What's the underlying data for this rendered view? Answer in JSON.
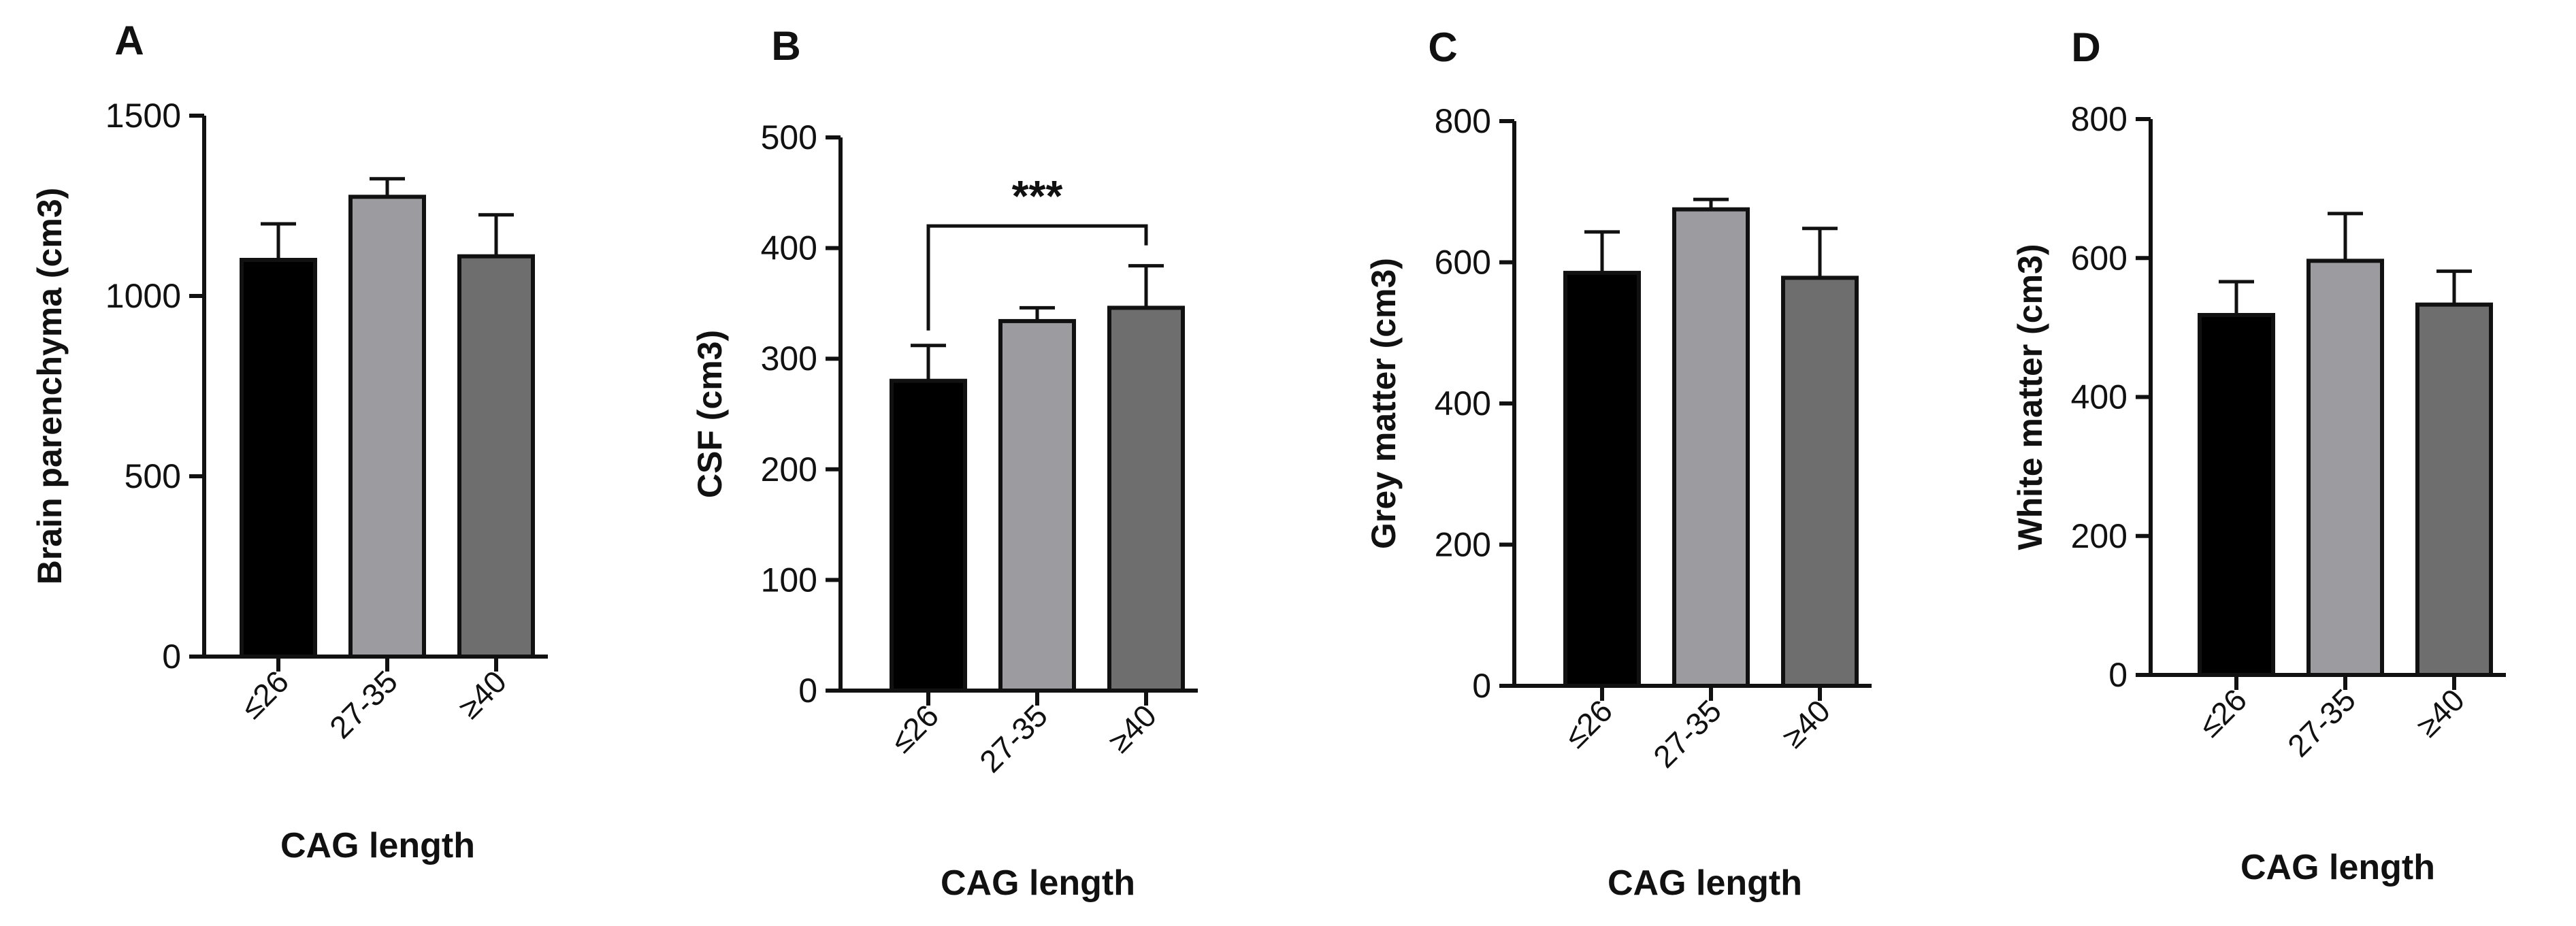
{
  "chart_data": [
    {
      "type": "bar",
      "panel": "A",
      "categories": [
        "≤26",
        "27-35",
        "≥40"
      ],
      "values": [
        1100,
        1275,
        1110
      ],
      "errors": [
        100,
        50,
        115
      ],
      "colors": [
        "#000000",
        "#9c9ca0",
        "#6e6e6e"
      ],
      "ylabel": "Brain parenchyma (cm3)",
      "xlabel": "CAG length",
      "ylim": [
        0,
        1500
      ],
      "yticks": [
        "0",
        "500",
        "1000",
        "1500"
      ],
      "significance": null
    },
    {
      "type": "bar",
      "panel": "B",
      "categories": [
        "≤26",
        "27-35",
        "≥40"
      ],
      "values": [
        280,
        334,
        346
      ],
      "errors": [
        32,
        12,
        38
      ],
      "colors": [
        "#000000",
        "#9c9ca0",
        "#6e6e6e"
      ],
      "ylabel": "CSF (cm3)",
      "xlabel": "CAG length",
      "ylim": [
        0,
        500
      ],
      "yticks": [
        "0",
        "100",
        "200",
        "300",
        "400",
        "500"
      ],
      "significance": {
        "from": 0,
        "to": 2,
        "label": "***"
      }
    },
    {
      "type": "bar",
      "panel": "C",
      "categories": [
        "≤26",
        "27-35",
        "≥40"
      ],
      "values": [
        585,
        675,
        578
      ],
      "errors": [
        58,
        14,
        70
      ],
      "colors": [
        "#000000",
        "#9c9ca0",
        "#6e6e6e"
      ],
      "ylabel": "Grey matter (cm3)",
      "xlabel": "CAG length",
      "ylim": [
        0,
        800
      ],
      "yticks": [
        "0",
        "200",
        "400",
        "600",
        "800"
      ],
      "significance": null
    },
    {
      "type": "bar",
      "panel": "D",
      "categories": [
        "≤26",
        "27-35",
        "≥40"
      ],
      "values": [
        518,
        596,
        533
      ],
      "errors": [
        48,
        68,
        48
      ],
      "colors": [
        "#000000",
        "#9c9ca0",
        "#6e6e6e"
      ],
      "ylabel": "White matter  (cm3)",
      "xlabel": "CAG length",
      "ylim": [
        0,
        800
      ],
      "yticks": [
        "0",
        "200",
        "400",
        "600",
        "800"
      ],
      "significance": null
    }
  ]
}
